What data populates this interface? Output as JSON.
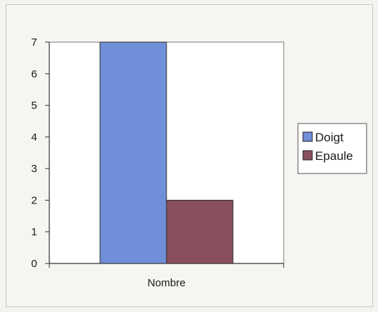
{
  "chart_data": {
    "type": "bar",
    "categories": [
      "Nombre"
    ],
    "series": [
      {
        "name": "Doigt",
        "values": [
          7
        ]
      },
      {
        "name": "Epaule",
        "values": [
          2
        ]
      }
    ],
    "colors": [
      "#6f8fd9",
      "#8a4f5f"
    ],
    "ylim": [
      0,
      7
    ],
    "yticks": [
      0,
      1,
      2,
      3,
      4,
      5,
      6,
      7
    ],
    "legend_position": "right",
    "grid": false
  }
}
